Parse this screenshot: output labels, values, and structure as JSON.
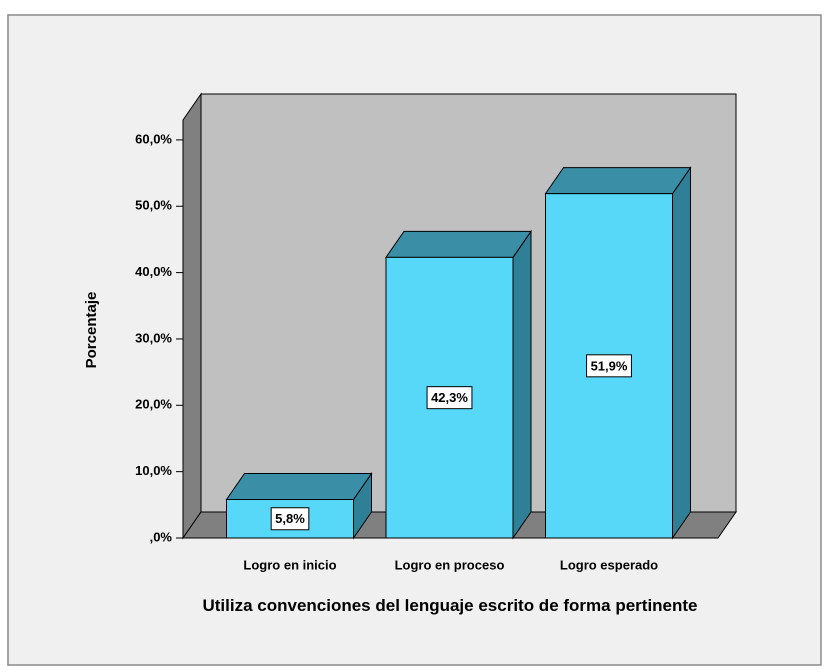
{
  "chart_data": {
    "type": "bar3d",
    "x_label": "Utiliza convenciones del lenguaje escrito de forma pertinente",
    "y_label": "Porcentaje",
    "categories": [
      "Logro en inicio",
      "Logro en proceso",
      "Logro esperado"
    ],
    "values": [
      5.8,
      42.3,
      51.9
    ],
    "value_labels": [
      "5,8%",
      "42,3%",
      "51,9%"
    ],
    "color": "#57d8f8",
    "ylim": [
      0,
      63
    ],
    "yticks": [
      {
        "value": 0,
        "label": ",0%"
      },
      {
        "value": 10,
        "label": "10,0%"
      },
      {
        "value": 20,
        "label": "20,0%"
      },
      {
        "value": 30,
        "label": "30,0%"
      },
      {
        "value": 40,
        "label": "40,0%"
      },
      {
        "value": 50,
        "label": "50,0%"
      },
      {
        "value": 60,
        "label": "60,0%"
      }
    ],
    "grid": false
  }
}
